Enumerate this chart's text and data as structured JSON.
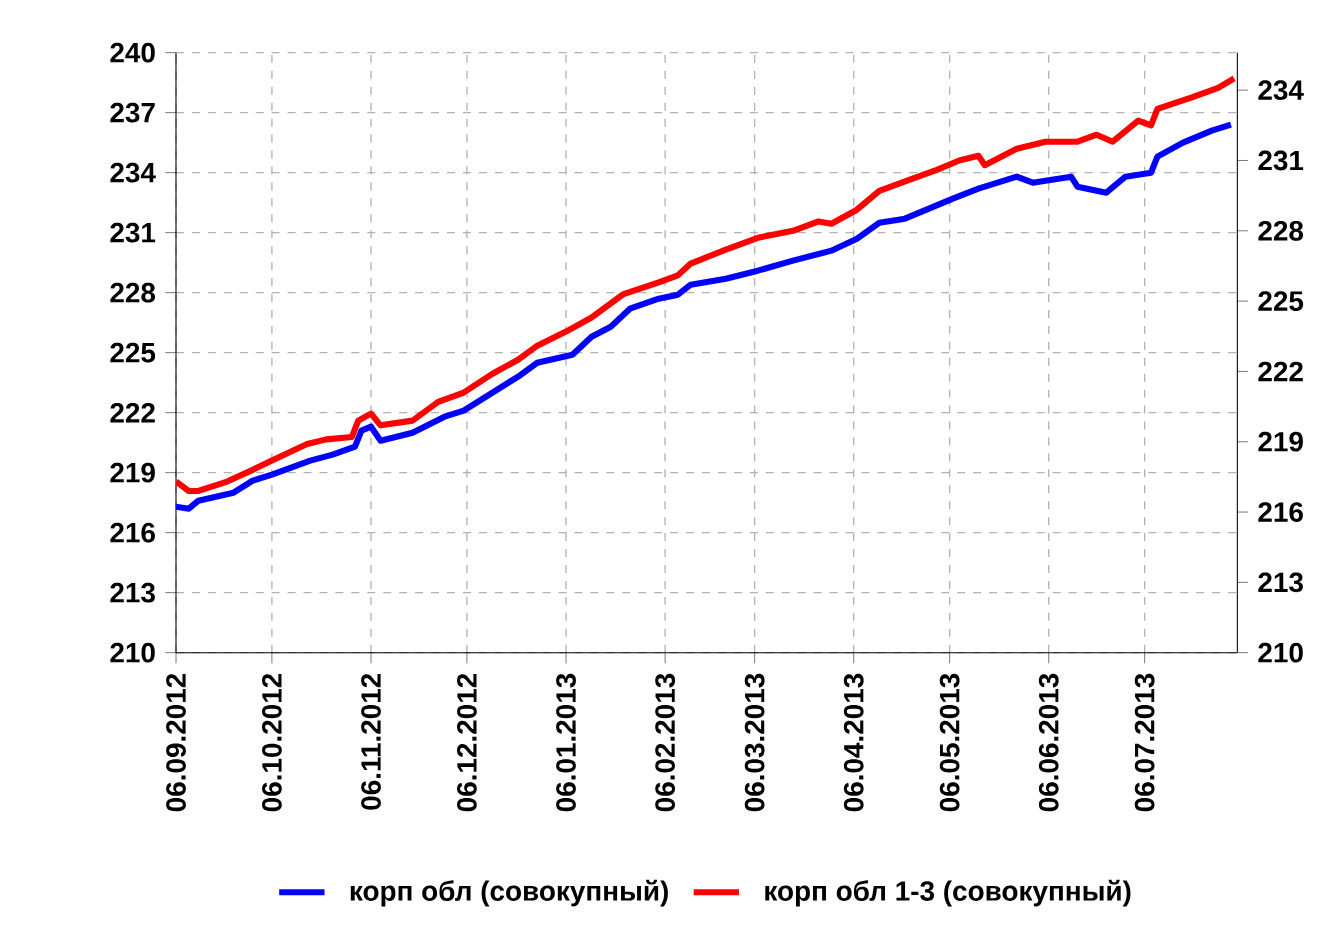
{
  "chart_data": {
    "type": "line",
    "grid": true,
    "legend": "bottom",
    "xlim": [
      "2012-09-06",
      "2013-08-04"
    ],
    "xticks": [
      {
        "value": "2012-09-06",
        "label": "06.09.2012"
      },
      {
        "value": "2012-10-06",
        "label": "06.10.2012"
      },
      {
        "value": "2012-11-06",
        "label": "06.11.2012"
      },
      {
        "value": "2012-12-06",
        "label": "06.12.2012"
      },
      {
        "value": "2013-01-06",
        "label": "06.01.2013"
      },
      {
        "value": "2013-02-06",
        "label": "06.02.2013"
      },
      {
        "value": "2013-03-06",
        "label": "06.03.2013"
      },
      {
        "value": "2013-04-06",
        "label": "06.04.2013"
      },
      {
        "value": "2013-05-06",
        "label": "06.05.2013"
      },
      {
        "value": "2013-06-06",
        "label": "06.06.2013"
      },
      {
        "value": "2013-07-06",
        "label": "06.07.2013"
      }
    ],
    "ylim": [
      210,
      240
    ],
    "yticks": [
      210,
      213,
      216,
      219,
      222,
      225,
      228,
      231,
      234,
      237,
      240
    ],
    "y2lim": [
      210,
      235.6
    ],
    "y2ticks": [
      210,
      213,
      216,
      219,
      222,
      225,
      228,
      231,
      234
    ],
    "series": [
      {
        "name": "корп обл (совокупный)",
        "color": "#0000ff",
        "x": [
          "2012-09-06",
          "2012-09-10",
          "2012-09-13",
          "2012-09-24",
          "2012-09-30",
          "2012-10-06",
          "2012-10-18",
          "2012-10-25",
          "2012-11-01",
          "2012-11-03",
          "2012-11-06",
          "2012-11-09",
          "2012-11-19",
          "2012-11-29",
          "2012-12-05",
          "2012-12-14",
          "2012-12-22",
          "2012-12-28",
          "2013-01-08",
          "2013-01-14",
          "2013-01-20",
          "2013-01-26",
          "2013-02-04",
          "2013-02-10",
          "2013-02-14",
          "2013-02-25",
          "2013-03-07",
          "2013-03-18",
          "2013-03-30",
          "2013-04-07",
          "2013-04-14",
          "2013-04-22",
          "2013-04-28",
          "2013-05-07",
          "2013-05-15",
          "2013-05-27",
          "2013-06-01",
          "2013-06-13",
          "2013-06-15",
          "2013-06-24",
          "2013-06-30",
          "2013-07-04",
          "2013-07-08",
          "2013-07-10",
          "2013-07-18",
          "2013-07-27",
          "2013-08-02"
        ],
        "values": [
          217.3,
          217.2,
          217.6,
          218.0,
          218.6,
          218.9,
          219.6,
          219.9,
          220.3,
          221.1,
          221.3,
          220.6,
          221.0,
          221.8,
          222.1,
          223.0,
          223.8,
          224.5,
          224.9,
          225.8,
          226.3,
          227.2,
          227.7,
          227.9,
          228.4,
          228.7,
          229.1,
          229.6,
          230.1,
          230.7,
          231.5,
          231.7,
          232.1,
          232.7,
          233.2,
          233.8,
          233.5,
          233.8,
          233.3,
          233.0,
          233.8,
          233.9,
          234.0,
          234.8,
          235.5,
          236.1,
          236.4
        ]
      },
      {
        "name": "корп обл 1-3 (совокупный)",
        "color": "#ff0000",
        "axis": "y2",
        "x": [
          "2012-09-06",
          "2012-09-10",
          "2012-09-13",
          "2012-09-22",
          "2012-09-30",
          "2012-10-06",
          "2012-10-17",
          "2012-10-23",
          "2012-10-31",
          "2012-11-02",
          "2012-11-06",
          "2012-11-09",
          "2012-11-19",
          "2012-11-27",
          "2012-12-05",
          "2012-12-14",
          "2012-12-22",
          "2012-12-28",
          "2013-01-06",
          "2013-01-14",
          "2013-01-24",
          "2013-02-04",
          "2013-02-10",
          "2013-02-14",
          "2013-02-25",
          "2013-03-07",
          "2013-03-18",
          "2013-03-26",
          "2013-03-30",
          "2013-04-07",
          "2013-04-14",
          "2013-04-24",
          "2013-05-02",
          "2013-05-09",
          "2013-05-15",
          "2013-05-17",
          "2013-05-27",
          "2013-06-05",
          "2013-06-15",
          "2013-06-21",
          "2013-06-26",
          "2013-07-04",
          "2013-07-08",
          "2013-07-10",
          "2013-07-21",
          "2013-07-29",
          "2013-08-03"
        ],
        "values": [
          217.3,
          216.9,
          216.9,
          217.3,
          217.8,
          218.2,
          218.9,
          219.1,
          219.2,
          219.9,
          220.2,
          219.7,
          219.9,
          220.7,
          221.1,
          221.9,
          222.5,
          223.1,
          223.7,
          224.3,
          225.3,
          225.8,
          226.1,
          226.6,
          227.2,
          227.7,
          228.0,
          228.4,
          228.3,
          228.9,
          229.7,
          230.2,
          230.6,
          231.0,
          231.2,
          230.8,
          231.5,
          231.8,
          231.8,
          232.1,
          231.8,
          232.7,
          232.5,
          233.2,
          233.7,
          234.1,
          234.5
        ]
      }
    ]
  }
}
